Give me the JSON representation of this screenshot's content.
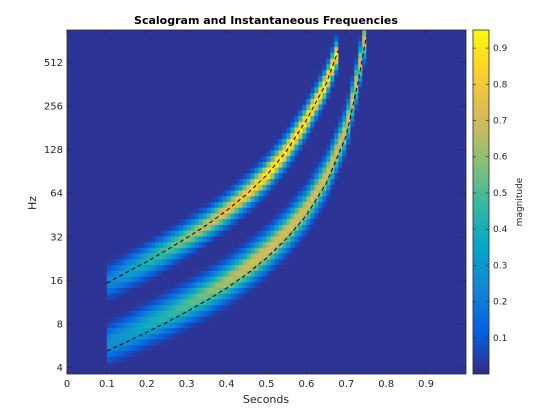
{
  "chart_data": {
    "type": "heatmap",
    "title": "Scalogram and Instantaneous Frequencies",
    "xlabel": "Seconds",
    "ylabel": "Hz",
    "xlim": [
      0,
      1
    ],
    "ylim": [
      3.6,
      860
    ],
    "y_scale": "log2",
    "x_ticks": [
      0,
      0.1,
      0.2,
      0.3,
      0.4,
      0.5,
      0.6,
      0.7,
      0.8,
      0.9
    ],
    "x_tick_labels": [
      "0",
      "0.1",
      "0.2",
      "0.3",
      "0.4",
      "0.5",
      "0.6",
      "0.7",
      "0.8",
      "0.9"
    ],
    "y_ticks": [
      4,
      8,
      16,
      32,
      64,
      128,
      256,
      512
    ],
    "y_tick_labels": [
      "4",
      "8",
      "16",
      "32",
      "64",
      "128",
      "256",
      "512"
    ],
    "colormap": "parula",
    "colorbar": {
      "label": "magnitude",
      "range": [
        0,
        0.95
      ],
      "ticks": [
        0.1,
        0.2,
        0.3,
        0.4,
        0.5,
        0.6,
        0.7,
        0.8,
        0.9
      ],
      "tick_labels": [
        "0.1",
        "0.2",
        "0.3",
        "0.4",
        "0.5",
        "0.6",
        "0.7",
        "0.8",
        "0.9"
      ]
    },
    "series": [
      {
        "style": "dashed",
        "color": "#000000",
        "x": [
          0.1,
          0.15,
          0.2,
          0.25,
          0.3,
          0.35,
          0.4,
          0.45,
          0.5,
          0.55,
          0.6,
          0.65,
          0.68
        ],
        "y": [
          15.3,
          18.2,
          21.5,
          25.9,
          31.4,
          38.5,
          48.5,
          63,
          85,
          125,
          205,
          370,
          620
        ]
      },
      {
        "style": "dashed",
        "color": "#000000",
        "x": [
          0.1,
          0.15,
          0.2,
          0.25,
          0.3,
          0.35,
          0.4,
          0.45,
          0.5,
          0.55,
          0.6,
          0.65,
          0.7,
          0.73,
          0.75
        ],
        "y": [
          5.2,
          6.0,
          7.0,
          8.2,
          9.7,
          11.6,
          14.1,
          17.6,
          22.8,
          31,
          45,
          75,
          160,
          380,
          780
        ]
      }
    ]
  }
}
